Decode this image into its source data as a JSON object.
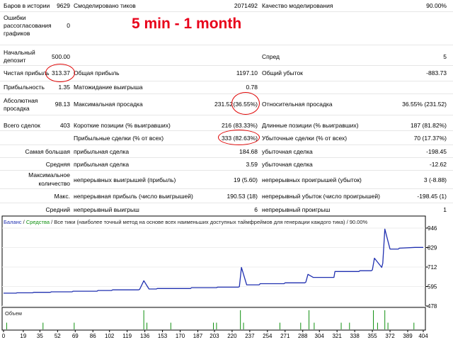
{
  "overlay_title": "5 min - 1 month",
  "stats": {
    "bars_label": "Баров в истории",
    "bars_value": "9629",
    "ticks_label": "Смоделировано тиков",
    "ticks_value": "2071492",
    "quality_label": "Качество моделирования",
    "quality_value": "90.00%",
    "mismatch_l1": "Ошибки",
    "mismatch_l2": "рассогласования",
    "mismatch_l3": "графиков",
    "mismatch_value": "0",
    "deposit_l1": "Начальный",
    "deposit_l2": "депозит",
    "deposit_value": "500.00",
    "spread_label": "Спред",
    "spread_value": "5",
    "net_label": "Чистая прибыль",
    "net_value": "313.37",
    "gross_profit_label": "Общая прибыль",
    "gross_profit_value": "1197.10",
    "gross_loss_label": "Общий убыток",
    "gross_loss_value": "-883.73",
    "pf_label": "Прибыльность",
    "pf_value": "1.35",
    "payoff_label": "Матожидание выигрыша",
    "payoff_value": "0.78",
    "absdd_l1": "Абсолютная",
    "absdd_l2": "просадка",
    "absdd_value": "98.13",
    "maxdd_label": "Максимальная просадка",
    "maxdd_value_a": "231.52",
    "maxdd_value_b": "(36.55%)",
    "reldd_label": "Относительная просадка",
    "reldd_value": "36.55% (231.52)",
    "trades_label": "Всего сделок",
    "trades_value": "403",
    "short_label": "Короткие позиции (% выигравших)",
    "short_value": "216 (83.33%)",
    "long_label": "Длинные позиции (% выигравших)",
    "long_value": "187 (81.82%)",
    "profit_trades_label": "Прибыльные сделки (% от всех)",
    "profit_trades_value": "333 (82.63%)",
    "loss_trades_label": "Убыточные сделки (% от всех)",
    "loss_trades_value": "70 (17.37%)",
    "largest_label": "Самая большая",
    "largest_profit_label": "прибыльная сделка",
    "largest_profit_value": "184.68",
    "largest_loss_label": "убыточная сделка",
    "largest_loss_value": "-198.45",
    "average_label": "Средняя",
    "average_profit_label": "прибыльная сделка",
    "average_profit_value": "3.59",
    "average_loss_label": "убыточная сделка",
    "average_loss_value": "-12.62",
    "maxcount_l1": "Максимальное",
    "maxcount_l2": "количество",
    "maxcons_wins_label": "непрерывных выигрышей (прибыль)",
    "maxcons_wins_value": "19 (5.60)",
    "maxcons_losses_label": "непрерывных проигрышей (убыток)",
    "maxcons_losses_value": "3 (-8.88)",
    "max_label": "Макс.",
    "maxprofit_label": "непрерывная прибыль (число выигрышей)",
    "maxprofit_value": "190.53 (18)",
    "maxloss_label": "непрерывный убыток (число проигрышей)",
    "maxloss_value": "-198.45 (1)",
    "avgcons_label": "Средний",
    "avgwins_label": "непрерывный выигрыш",
    "avgwins_value": "6",
    "avglosses_label": "непрерывный проигрыш",
    "avglosses_value": "1"
  },
  "legend": {
    "balance": "Баланс",
    "sep": " / ",
    "equity": "Средства",
    "rest": " / Все тики (наиболее точный метод на основе всех наименьших доступных таймфреймов для генерации каждого тика) / 90.00%"
  },
  "volume_label": "Объем",
  "colors": {
    "balance": "#2030b0",
    "volume": "#109010",
    "highlight": "#e00000"
  },
  "chart_data": {
    "type": "line",
    "y_ticks": [
      "946",
      "829",
      "712",
      "595",
      "478"
    ],
    "ylim": [
      478,
      946
    ],
    "x_ticks": [
      "0",
      "19",
      "35",
      "52",
      "69",
      "86",
      "102",
      "119",
      "136",
      "153",
      "170",
      "187",
      "203",
      "220",
      "237",
      "254",
      "271",
      "288",
      "304",
      "321",
      "338",
      "355",
      "372",
      "389",
      "404"
    ],
    "xlim": [
      0,
      404
    ],
    "series": [
      {
        "x": [
          0,
          12,
          13,
          28,
          29,
          45,
          46,
          66,
          67,
          90,
          91,
          104,
          105,
          130,
          131,
          135,
          140,
          147,
          148,
          180,
          181,
          205,
          206,
          226,
          227,
          229,
          234,
          246,
          247,
          270,
          271,
          290,
          291,
          293,
          298,
          318,
          319,
          342,
          343,
          354,
          355,
          357,
          364,
          365,
          367,
          372,
          380,
          381,
          396,
          404
        ],
        "y": [
          555,
          555,
          557,
          557,
          560,
          560,
          563,
          563,
          567,
          567,
          571,
          571,
          575,
          575,
          578,
          630,
          580,
          580,
          583,
          583,
          588,
          588,
          591,
          591,
          594,
          710,
          605,
          605,
          612,
          612,
          617,
          617,
          622,
          668,
          650,
          650,
          685,
          685,
          690,
          690,
          695,
          765,
          710,
          735,
          940,
          820,
          820,
          825,
          830,
          830
        ]
      }
    ],
    "volume": [
      {
        "x": 3,
        "v": 0.35
      },
      {
        "x": 38,
        "v": 0.35
      },
      {
        "x": 68,
        "v": 0.35
      },
      {
        "x": 135,
        "v": 1.0
      },
      {
        "x": 138,
        "v": 0.35
      },
      {
        "x": 161,
        "v": 0.35
      },
      {
        "x": 202,
        "v": 0.35
      },
      {
        "x": 205,
        "v": 0.35
      },
      {
        "x": 228,
        "v": 1.0
      },
      {
        "x": 231,
        "v": 0.35
      },
      {
        "x": 266,
        "v": 0.35
      },
      {
        "x": 286,
        "v": 0.35
      },
      {
        "x": 294,
        "v": 1.0
      },
      {
        "x": 299,
        "v": 0.35
      },
      {
        "x": 325,
        "v": 0.35
      },
      {
        "x": 333,
        "v": 0.35
      },
      {
        "x": 356,
        "v": 1.0
      },
      {
        "x": 360,
        "v": 0.35
      },
      {
        "x": 367,
        "v": 1.0
      },
      {
        "x": 370,
        "v": 0.35
      },
      {
        "x": 395,
        "v": 0.35
      }
    ]
  }
}
